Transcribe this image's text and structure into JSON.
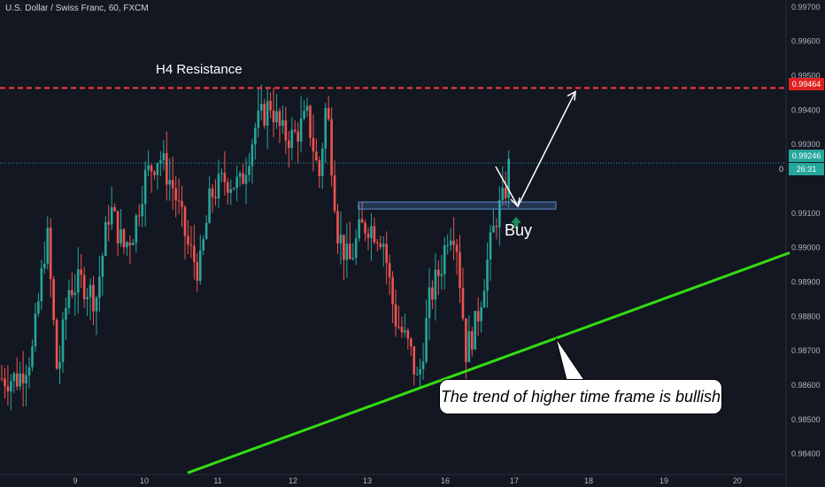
{
  "header": {
    "symbol_title": "U.S. Dollar / Swiss Franc, 60, FXCM"
  },
  "annotations": {
    "resistance_label": "H4 Resistance",
    "buy_label": "Buy",
    "callout_text": "The trend of higher time frame is bullish"
  },
  "price_tags": {
    "resistance_price": "0.99464",
    "current_price": "0.99246",
    "countdown_prefix": "0",
    "countdown": "26:31"
  },
  "colors": {
    "background": "#131722",
    "bull": "#26a69a",
    "bear": "#ef5350",
    "resistance": "#ff3b3b",
    "trendline": "#33dd11",
    "current_price_line": "#26a69a",
    "buy_arrow": "#1f8a5f",
    "zone": "#5b8fd6"
  },
  "chart_data": {
    "type": "candlestick",
    "title": "U.S. Dollar / Swiss Franc, 60, FXCM",
    "x_ticks": [
      "9",
      "10",
      "11",
      "12",
      "13",
      "16",
      "17",
      "18",
      "19",
      "20"
    ],
    "y_ticks": [
      "0.99700",
      "0.99600",
      "0.99500",
      "0.99400",
      "0.99300",
      "0.99100",
      "0.99000",
      "0.98900",
      "0.98800",
      "0.98700",
      "0.98600",
      "0.98500",
      "0.98400"
    ],
    "y_range": [
      0.9834,
      0.9972
    ],
    "grid": false,
    "resistance_level": 0.99464,
    "current_price": 0.99246,
    "buy_zone": {
      "low": 0.99105,
      "high": 0.99125
    },
    "price_path": [
      [
        8.2,
        0.9862
      ],
      [
        8.4,
        0.987
      ],
      [
        8.6,
        0.9905
      ],
      [
        8.75,
        0.9862
      ],
      [
        8.9,
        0.9888
      ],
      [
        9.1,
        0.989
      ],
      [
        9.3,
        0.9885
      ],
      [
        9.5,
        0.9912
      ],
      [
        9.7,
        0.99
      ],
      [
        9.85,
        0.9905
      ],
      [
        10.0,
        0.992
      ],
      [
        10.2,
        0.9927
      ],
      [
        10.4,
        0.9917
      ],
      [
        10.6,
        0.99
      ],
      [
        10.75,
        0.9893
      ],
      [
        10.9,
        0.9915
      ],
      [
        11.1,
        0.992
      ],
      [
        11.3,
        0.9918
      ],
      [
        11.5,
        0.9935
      ],
      [
        11.7,
        0.9942
      ],
      [
        11.85,
        0.9933
      ],
      [
        12.0,
        0.9932
      ],
      [
        12.2,
        0.9938
      ],
      [
        12.35,
        0.992
      ],
      [
        12.45,
        0.9943
      ],
      [
        12.6,
        0.9905
      ],
      [
        12.75,
        0.9895
      ],
      [
        12.9,
        0.9905
      ],
      [
        13.0,
        0.9907
      ],
      [
        13.2,
        0.9903
      ],
      [
        13.35,
        0.988
      ],
      [
        13.55,
        0.987
      ],
      [
        13.65,
        0.986
      ],
      [
        13.8,
        0.9885
      ],
      [
        13.95,
        0.9895
      ],
      [
        14.05,
        0.9906
      ],
      [
        14.15,
        0.9905
      ],
      [
        14.3,
        0.987
      ],
      [
        14.45,
        0.9878
      ],
      [
        14.6,
        0.9895
      ],
      [
        14.75,
        0.991
      ],
      [
        14.85,
        0.9914
      ],
      [
        14.93,
        0.99246
      ]
    ],
    "projection": [
      {
        "from": 0.99246,
        "to": 0.99115,
        "label": "Buy"
      },
      {
        "from": 0.99115,
        "to": 0.99464
      }
    ],
    "trendline": {
      "from": [
        10.6,
        0.98345
      ],
      "to": [
        20.7,
        0.98985
      ]
    },
    "legend": "none"
  }
}
